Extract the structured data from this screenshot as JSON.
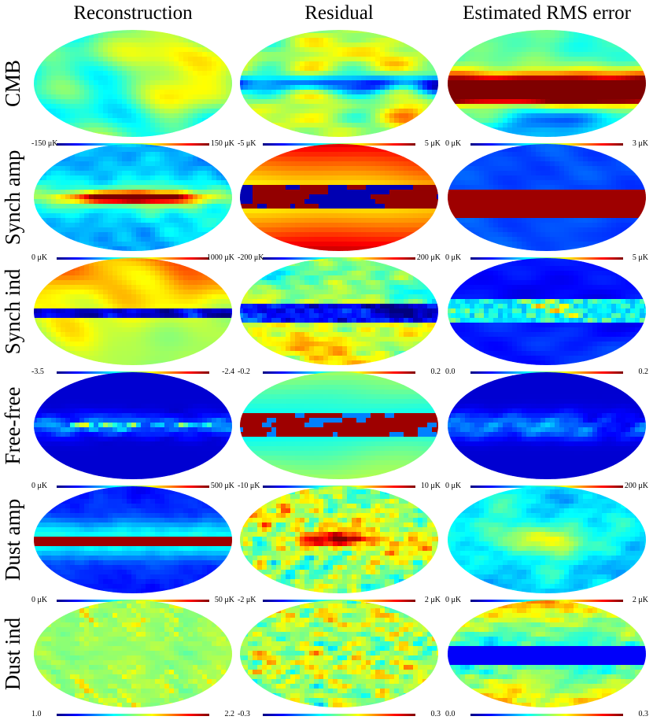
{
  "columns": [
    "Reconstruction",
    "Residual",
    "Estimated RMS error"
  ],
  "rows": [
    {
      "label": "CMB",
      "maps": [
        {
          "kind": "cmb",
          "colorbar": {
            "min": "-150 μK",
            "max": "150 μK"
          }
        },
        {
          "kind": "cmbres",
          "colorbar": {
            "min": "-5 μK",
            "max": "5 μK"
          }
        },
        {
          "kind": "cmbrms",
          "colorbar": {
            "min": "0 μK",
            "max": "3 μK"
          }
        }
      ]
    },
    {
      "label": "Synch amp",
      "maps": [
        {
          "kind": "synamp",
          "colorbar": {
            "min": "0 μK",
            "max": "1000 μK"
          }
        },
        {
          "kind": "synres",
          "colorbar": {
            "min": "-200 μK",
            "max": "200 μK"
          }
        },
        {
          "kind": "synrms",
          "colorbar": {
            "min": "0 μK",
            "max": "5 μK"
          }
        }
      ]
    },
    {
      "label": "Synch ind",
      "maps": [
        {
          "kind": "synind",
          "colorbar": {
            "min": "-3.5",
            "max": "-2.4"
          }
        },
        {
          "kind": "synindres",
          "colorbar": {
            "min": "-0.2",
            "max": "0.2"
          }
        },
        {
          "kind": "synindrms",
          "colorbar": {
            "min": "0.0",
            "max": "0.2"
          }
        }
      ]
    },
    {
      "label": "Free-free",
      "maps": [
        {
          "kind": "ff",
          "colorbar": {
            "min": "0 μK",
            "max": "500 μK"
          }
        },
        {
          "kind": "ffres",
          "colorbar": {
            "min": "-10 μK",
            "max": "10 μK"
          }
        },
        {
          "kind": "ffrms",
          "colorbar": {
            "min": "0 μK",
            "max": "200 μK"
          }
        }
      ]
    },
    {
      "label": "Dust amp",
      "maps": [
        {
          "kind": "dustamp",
          "colorbar": {
            "min": "0 μK",
            "max": "50 μK"
          }
        },
        {
          "kind": "dustres",
          "colorbar": {
            "min": "-2 μK",
            "max": "2 μK"
          }
        },
        {
          "kind": "dustrms",
          "colorbar": {
            "min": "0 μK",
            "max": "2 μK"
          }
        }
      ]
    },
    {
      "label": "Dust ind",
      "maps": [
        {
          "kind": "dustind",
          "colorbar": {
            "min": "1.0",
            "max": "2.2"
          }
        },
        {
          "kind": "dustindres",
          "colorbar": {
            "min": "-0.3",
            "max": "0.3"
          }
        },
        {
          "kind": "dustindrms",
          "colorbar": {
            "min": "0.0",
            "max": "0.3"
          }
        }
      ]
    }
  ],
  "colormap": [
    "#00007f",
    "#0000ff",
    "#0080ff",
    "#00ffff",
    "#80ff80",
    "#ffff00",
    "#ff8000",
    "#ff0000",
    "#7f0000"
  ]
}
